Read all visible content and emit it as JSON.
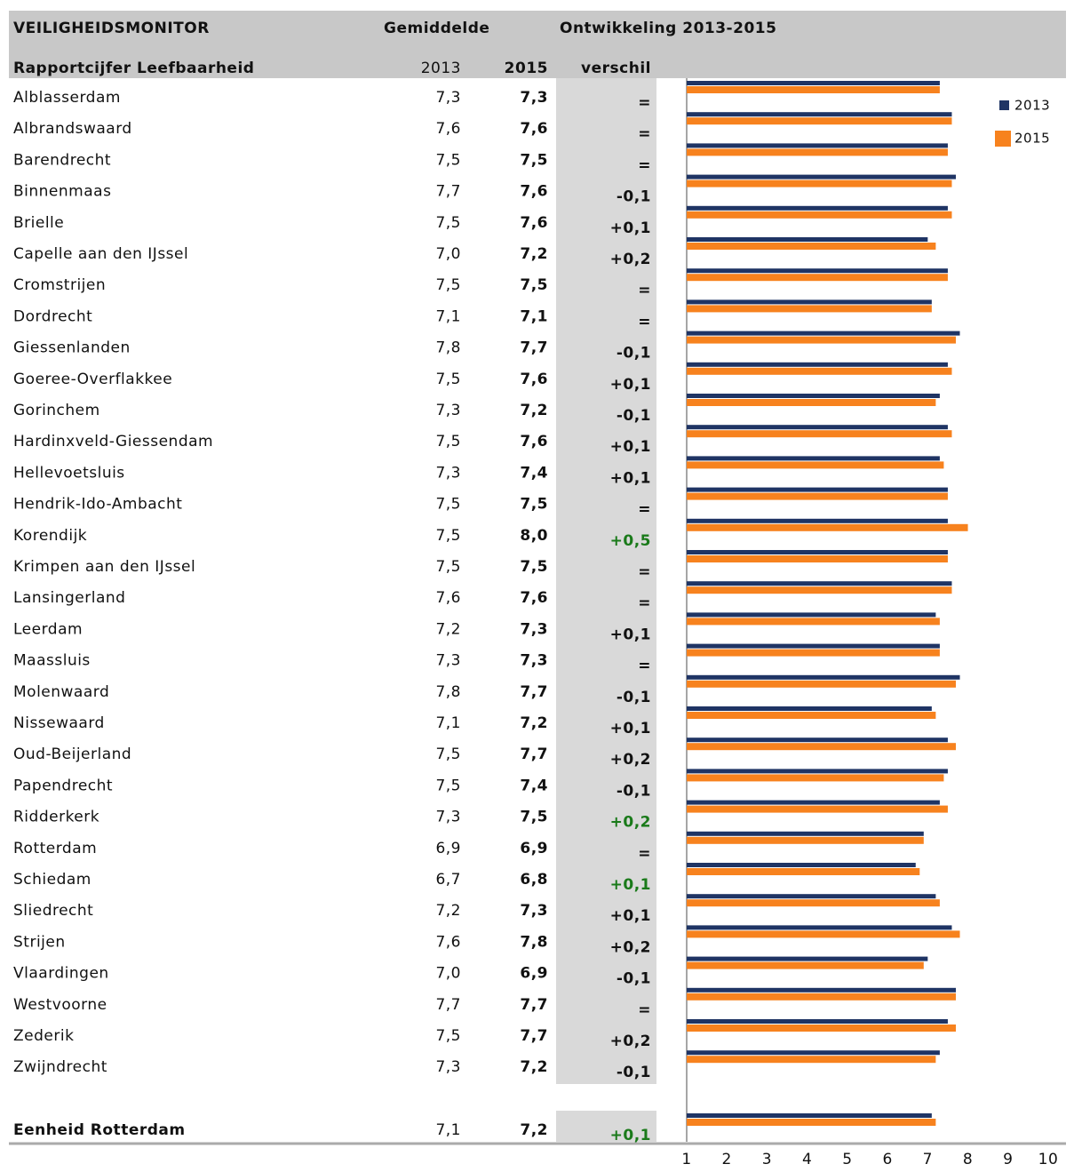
{
  "chart_data": {
    "type": "bar",
    "orientation": "horizontal",
    "title": "VEILIGHEIDSMONITOR",
    "mean_header": "Gemiddelde",
    "development_header": "Ontwikkeling 2013-2015",
    "indicator": "Rapportcijfer Leefbaarheid",
    "difference_header": "verschil",
    "categories": [
      "Alblasserdam",
      "Albrandswaard",
      "Barendrecht",
      "Binnenmaas",
      "Brielle",
      "Capelle aan den IJssel",
      "Cromstrijen",
      "Dordrecht",
      "Giessenlanden",
      "Goeree-Overflakkee",
      "Gorinchem",
      "Hardinxveld-Giessendam",
      "Hellevoetsluis",
      "Hendrik-Ido-Ambacht",
      "Korendijk",
      "Krimpen aan den IJssel",
      "Lansingerland",
      "Leerdam",
      "Maassluis",
      "Molenwaard",
      "Nissewaard",
      "Oud-Beijerland",
      "Papendrecht",
      "Ridderkerk",
      "Rotterdam",
      "Schiedam",
      "Sliedrecht",
      "Strijen",
      "Vlaardingen",
      "Westvoorne",
      "Zederik",
      "Zwijndrecht",
      "Eenheid Rotterdam"
    ],
    "series": [
      {
        "name": "2013",
        "color": "#1f3464",
        "values": [
          7.3,
          7.6,
          7.5,
          7.7,
          7.5,
          7.0,
          7.5,
          7.1,
          7.8,
          7.5,
          7.3,
          7.5,
          7.3,
          7.5,
          7.5,
          7.5,
          7.6,
          7.2,
          7.3,
          7.8,
          7.1,
          7.5,
          7.5,
          7.3,
          6.9,
          6.7,
          7.2,
          7.6,
          7.0,
          7.7,
          7.5,
          7.3,
          7.1
        ],
        "value_labels": [
          "7,3",
          "7,6",
          "7,5",
          "7,7",
          "7,5",
          "7,0",
          "7,5",
          "7,1",
          "7,8",
          "7,5",
          "7,3",
          "7,5",
          "7,3",
          "7,5",
          "7,5",
          "7,5",
          "7,6",
          "7,2",
          "7,3",
          "7,8",
          "7,1",
          "7,5",
          "7,5",
          "7,3",
          "6,9",
          "6,7",
          "7,2",
          "7,6",
          "7,0",
          "7,7",
          "7,5",
          "7,3",
          "7,1"
        ]
      },
      {
        "name": "2015",
        "color": "#f7821e",
        "values": [
          7.3,
          7.6,
          7.5,
          7.6,
          7.6,
          7.2,
          7.5,
          7.1,
          7.7,
          7.6,
          7.2,
          7.6,
          7.4,
          7.5,
          8.0,
          7.5,
          7.6,
          7.3,
          7.3,
          7.7,
          7.2,
          7.7,
          7.4,
          7.5,
          6.9,
          6.8,
          7.3,
          7.8,
          6.9,
          7.7,
          7.7,
          7.2,
          7.2
        ],
        "value_labels": [
          "7,3",
          "7,6",
          "7,5",
          "7,6",
          "7,6",
          "7,2",
          "7,5",
          "7,1",
          "7,7",
          "7,6",
          "7,2",
          "7,6",
          "7,4",
          "7,5",
          "8,0",
          "7,5",
          "7,6",
          "7,3",
          "7,3",
          "7,7",
          "7,2",
          "7,7",
          "7,4",
          "7,5",
          "6,9",
          "6,8",
          "7,3",
          "7,8",
          "6,9",
          "7,7",
          "7,7",
          "7,2",
          "7,2"
        ]
      }
    ],
    "difference": [
      "=",
      "=",
      "=",
      "-0,1",
      "+0,1",
      "+0,2",
      "=",
      "=",
      "-0,1",
      "+0,1",
      "-0,1",
      "+0,1",
      "+0,1",
      "=",
      "+0,5",
      "=",
      "=",
      "+0,1",
      "=",
      "-0,1",
      "+0,1",
      "+0,2",
      "-0,1",
      "+0,2",
      "=",
      "+0,1",
      "+0,1",
      "+0,2",
      "-0,1",
      "=",
      "+0,2",
      "-0,1",
      "+0,1"
    ],
    "significant": [
      false,
      false,
      false,
      false,
      false,
      false,
      false,
      false,
      false,
      false,
      false,
      false,
      false,
      false,
      true,
      false,
      false,
      false,
      false,
      false,
      false,
      false,
      false,
      true,
      false,
      true,
      false,
      false,
      false,
      false,
      false,
      false,
      true
    ],
    "significant_color": "#1a7a1a",
    "xlim": [
      1,
      10
    ],
    "xticks": [
      1,
      2,
      3,
      4,
      5,
      6,
      7,
      8,
      9,
      10
    ]
  }
}
